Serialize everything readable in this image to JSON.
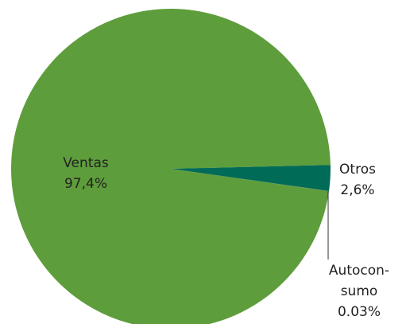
{
  "chart_data": {
    "type": "pie",
    "categories": [
      [
        "Ventas"
      ],
      [
        "Otros"
      ],
      [
        "Autocon-",
        "sumo"
      ]
    ],
    "values": [
      97.4,
      2.6,
      0.03
    ],
    "value_labels": [
      "97,4%",
      "2,6%",
      "0.03%"
    ],
    "colors": [
      "#5e9d3b",
      "#006b56",
      "#2f7d4a"
    ]
  }
}
